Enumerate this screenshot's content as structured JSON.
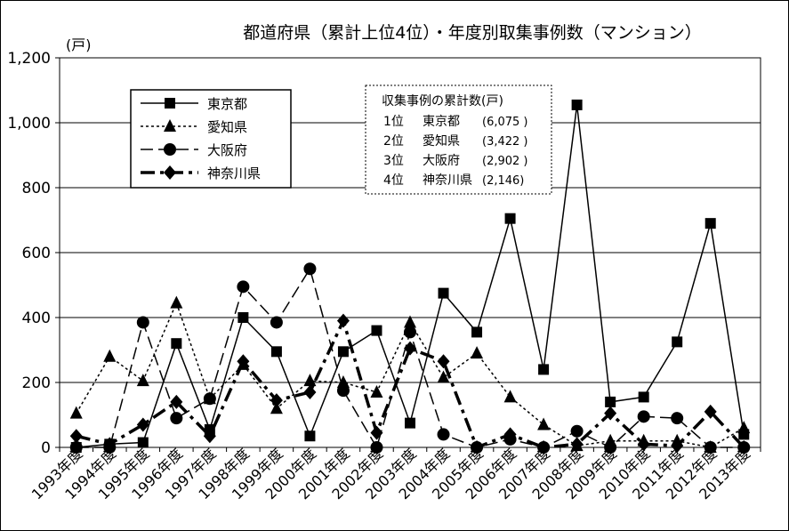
{
  "chart_data": {
    "type": "line",
    "title": "都道府県（累計上位4位）・年度別取集事例数（マンション）",
    "ylabel": "(戸)",
    "xlabel": "",
    "ylim": [
      0,
      1200
    ],
    "yticks": [
      0,
      200,
      400,
      600,
      800,
      1000,
      1200
    ],
    "ytick_labels": [
      "0",
      "200",
      "400",
      "600",
      "800",
      "1,000",
      "1,200"
    ],
    "grid": true,
    "categories": [
      "1993年度",
      "1994年度",
      "1995年度",
      "1996年度",
      "1997年度",
      "1998年度",
      "1999年度",
      "2000年度",
      "2001年度",
      "2002年度",
      "2003年度",
      "2004年度",
      "2005年度",
      "2006年度",
      "2007年度",
      "2008年度",
      "2009年度",
      "2010年度",
      "2011年度",
      "2012年度",
      "2013年度"
    ],
    "series": [
      {
        "name": "東京都",
        "line": "solid",
        "marker": "square",
        "color": "#000000",
        "values": [
          0,
          10,
          15,
          320,
          55,
          400,
          295,
          35,
          295,
          360,
          75,
          475,
          355,
          705,
          240,
          1055,
          140,
          155,
          325,
          690,
          40
        ]
      },
      {
        "name": "愛知県",
        "line": "dotted",
        "marker": "triangle",
        "color": "#000000",
        "values": [
          105,
          280,
          205,
          445,
          150,
          255,
          120,
          205,
          200,
          170,
          385,
          215,
          290,
          155,
          70,
          5,
          20,
          20,
          20,
          0,
          60
        ]
      },
      {
        "name": "大阪府",
        "line": "dashed",
        "marker": "circle",
        "color": "#000000",
        "values": [
          0,
          0,
          385,
          90,
          150,
          495,
          385,
          550,
          175,
          0,
          355,
          40,
          0,
          25,
          0,
          50,
          0,
          95,
          90,
          0,
          0
        ]
      },
      {
        "name": "神奈川県",
        "line": "dashdot",
        "marker": "diamond",
        "color": "#000000",
        "values": [
          35,
          10,
          70,
          140,
          35,
          265,
          145,
          170,
          390,
          45,
          305,
          265,
          0,
          40,
          0,
          10,
          105,
          10,
          5,
          110,
          0
        ]
      }
    ],
    "legend_position": "top-left",
    "annotation": {
      "title": "収集事例の累計数(戸)",
      "rows": [
        {
          "rank": "1位",
          "name": "東京都",
          "value": "(6,075 )"
        },
        {
          "rank": "2位",
          "name": "愛知県",
          "value": "(3,422 )"
        },
        {
          "rank": "3位",
          "name": "大阪府",
          "value": "(2,902 )"
        },
        {
          "rank": "4位",
          "name": "神奈川県",
          "value": "(2,146)"
        }
      ]
    }
  }
}
